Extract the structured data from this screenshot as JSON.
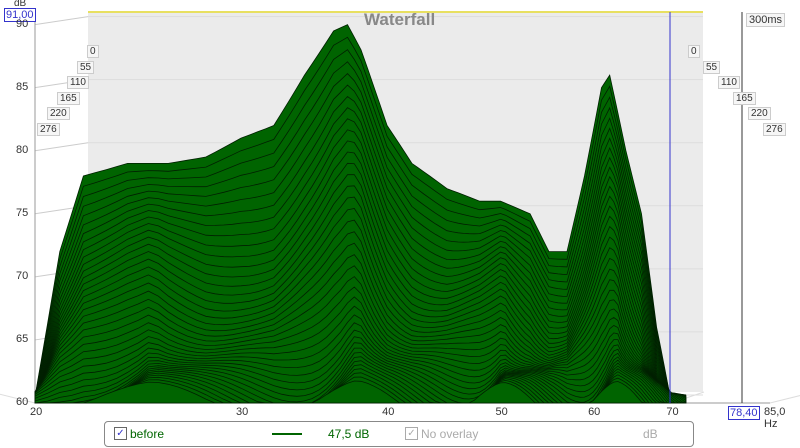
{
  "chart_data": {
    "type": "area",
    "title": "Waterfall",
    "ylabel": "dB",
    "xlabel": "Hz",
    "xlim": [
      20,
      85
    ],
    "ylim": [
      60,
      91
    ],
    "x_ticks": [
      "20",
      "30",
      "40",
      "50",
      "60",
      "70",
      "85,0 Hz"
    ],
    "x_tick_values": [
      20,
      30,
      40,
      50,
      60,
      70,
      85
    ],
    "y_ticks": [
      "90",
      "85",
      "80",
      "75",
      "70",
      "65",
      "60"
    ],
    "y_tick_values": [
      90,
      85,
      80,
      75,
      70,
      65,
      60
    ],
    "time_labels": [
      "0",
      "55",
      "110",
      "165",
      "220",
      "276"
    ],
    "time_range_label": "300ms",
    "y_max_readout": "91,00",
    "cursor_readout": "78,40",
    "series_color": "#006400",
    "slice_count": 40,
    "back_slice": {
      "freq": [
        20,
        21,
        22,
        24,
        26,
        28,
        30,
        32,
        34,
        36,
        37,
        38,
        40,
        42,
        45,
        48,
        50,
        53,
        55,
        57,
        59,
        61,
        62,
        64,
        66,
        68,
        70
      ],
      "db": [
        60.5,
        72,
        78,
        79,
        79,
        79.5,
        81,
        82,
        86,
        89.5,
        90,
        88,
        82,
        79,
        77,
        76,
        76,
        75,
        72,
        72,
        78,
        85,
        86,
        80,
        75,
        66,
        60
      ]
    }
  },
  "legend": {
    "series_name": "before",
    "series_value": "47,5 dB",
    "overlay_label": "No overlay",
    "overlay_unit": "dB"
  }
}
